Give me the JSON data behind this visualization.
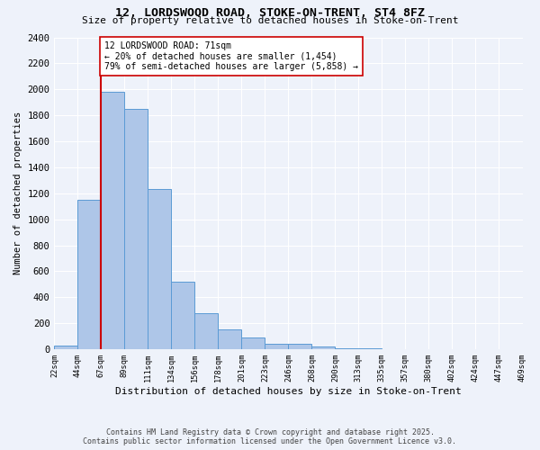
{
  "title1": "12, LORDSWOOD ROAD, STOKE-ON-TRENT, ST4 8FZ",
  "title2": "Size of property relative to detached houses in Stoke-on-Trent",
  "xlabel": "Distribution of detached houses by size in Stoke-on-Trent",
  "ylabel": "Number of detached properties",
  "bar_values": [
    25,
    1150,
    1980,
    1850,
    1230,
    520,
    275,
    155,
    90,
    45,
    40,
    20,
    10,
    5,
    3,
    2,
    1,
    1,
    1,
    1
  ],
  "bin_labels": [
    "22sqm",
    "44sqm",
    "67sqm",
    "89sqm",
    "111sqm",
    "134sqm",
    "156sqm",
    "178sqm",
    "201sqm",
    "223sqm",
    "246sqm",
    "268sqm",
    "290sqm",
    "313sqm",
    "335sqm",
    "357sqm",
    "380sqm",
    "402sqm",
    "424sqm",
    "447sqm",
    "469sqm"
  ],
  "bar_color": "#aec6e8",
  "bar_edge_color": "#5b9bd5",
  "background_color": "#eef2fa",
  "grid_color": "#ffffff",
  "annotation_line1": "12 LORDSWOOD ROAD: 71sqm",
  "annotation_line2": "← 20% of detached houses are smaller (1,454)",
  "annotation_line3": "79% of semi-detached houses are larger (5,858) →",
  "vline_bin_index": 2,
  "vline_color": "#cc0000",
  "annotation_box_color": "#ffffff",
  "annotation_box_edge_color": "#cc0000",
  "ylim": [
    0,
    2400
  ],
  "yticks": [
    0,
    200,
    400,
    600,
    800,
    1000,
    1200,
    1400,
    1600,
    1800,
    2000,
    2200,
    2400
  ],
  "footer1": "Contains HM Land Registry data © Crown copyright and database right 2025.",
  "footer2": "Contains public sector information licensed under the Open Government Licence v3.0."
}
